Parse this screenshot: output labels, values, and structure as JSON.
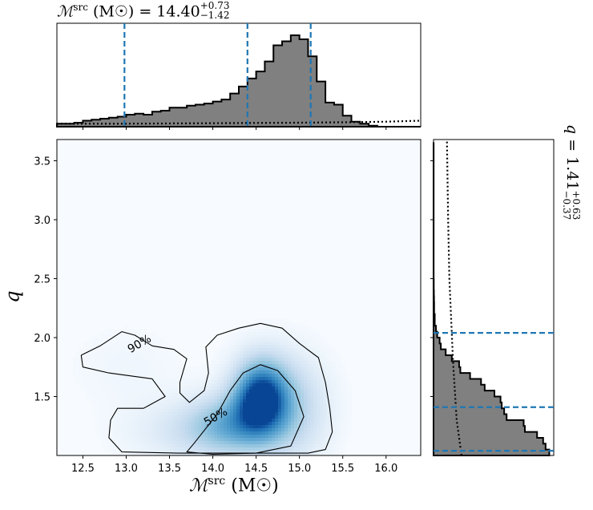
{
  "chart_data": {
    "type": "corner",
    "panels": [
      {
        "id": "marginal-x",
        "type": "histogram",
        "title": "ℳsrc (M☉) = 14.40+0.73−1.42",
        "title_parts": {
          "symbol": "ℳ",
          "sup": "src",
          "unit": "(M☉) = 14.40",
          "plus": "+0.73",
          "minus": "−1.42"
        },
        "x_range": [
          12.2,
          16.4
        ],
        "bin_width": 0.1,
        "bin_edges_start": 12.2,
        "counts": [
          0.03,
          0.03,
          0.04,
          0.06,
          0.07,
          0.08,
          0.09,
          0.1,
          0.12,
          0.13,
          0.12,
          0.15,
          0.16,
          0.19,
          0.19,
          0.21,
          0.22,
          0.23,
          0.25,
          0.27,
          0.33,
          0.4,
          0.48,
          0.55,
          0.65,
          0.81,
          0.85,
          0.91,
          0.87,
          0.7,
          0.45,
          0.24,
          0.22,
          0.11,
          0.05,
          0.03,
          0.01,
          0.0,
          0.0,
          0.0,
          0.0,
          0.0
        ],
        "prior_dotted": {
          "x": [
            12.2,
            13.0,
            14.0,
            15.0,
            15.6,
            16.0,
            16.4
          ],
          "y": [
            0.03,
            0.03,
            0.035,
            0.04,
            0.045,
            0.05,
            0.06
          ]
        },
        "quantiles": [
          12.98,
          14.4,
          15.13
        ]
      },
      {
        "id": "joint",
        "type": "heatmap",
        "xlabel": "ℳsrc (M☉)",
        "xlabel_parts": {
          "symbol": "ℳ",
          "sup": "src",
          "unit": "(M☉)"
        },
        "ylabel": "q",
        "xlim": [
          12.2,
          16.4
        ],
        "ylim": [
          1.0,
          3.68
        ],
        "x_ticks": [
          "12.5",
          "13.0",
          "13.5",
          "14.0",
          "14.5",
          "15.0",
          "15.5",
          "16.0"
        ],
        "y_ticks": [
          "1.5",
          "2.0",
          "2.5",
          "3.0",
          "3.5"
        ],
        "density_peaks": [
          {
            "x": 14.55,
            "y": 1.5,
            "sx": 0.22,
            "sy": 0.22,
            "w": 1.0
          },
          {
            "x": 14.2,
            "y": 1.25,
            "sx": 0.35,
            "sy": 0.18,
            "w": 0.55
          },
          {
            "x": 14.9,
            "y": 1.4,
            "sx": 0.3,
            "sy": 0.3,
            "w": 0.35
          },
          {
            "x": 13.6,
            "y": 1.2,
            "sx": 0.45,
            "sy": 0.18,
            "w": 0.15
          },
          {
            "x": 13.0,
            "y": 1.75,
            "sx": 0.45,
            "sy": 0.25,
            "w": 0.05
          }
        ],
        "contours": [
          {
            "label": "90%",
            "label_at": [
              13.15,
              1.95
            ],
            "paths": [
              [
                [
                  12.48,
                  1.85
                ],
                [
                  12.7,
                  1.93
                ],
                [
                  12.95,
                  2.05
                ],
                [
                  13.1,
                  2.02
                ],
                [
                  13.3,
                  1.93
                ],
                [
                  13.55,
                  1.9
                ],
                [
                  13.7,
                  1.82
                ],
                [
                  13.62,
                  1.62
                ],
                [
                  13.62,
                  1.53
                ],
                [
                  13.73,
                  1.45
                ],
                [
                  13.9,
                  1.55
                ],
                [
                  13.95,
                  1.7
                ],
                [
                  13.92,
                  1.92
                ],
                [
                  14.05,
                  2.02
                ],
                [
                  14.3,
                  2.08
                ],
                [
                  14.55,
                  2.12
                ],
                [
                  14.8,
                  2.08
                ],
                [
                  15.0,
                  1.95
                ],
                [
                  15.22,
                  1.83
                ],
                [
                  15.3,
                  1.62
                ],
                [
                  15.35,
                  1.4
                ],
                [
                  15.38,
                  1.2
                ],
                [
                  15.3,
                  1.05
                ],
                [
                  15.1,
                  1.02
                ],
                [
                  14.4,
                  1.02
                ],
                [
                  13.6,
                  1.02
                ],
                [
                  12.95,
                  1.03
                ],
                [
                  12.8,
                  1.15
                ],
                [
                  12.82,
                  1.3
                ],
                [
                  12.9,
                  1.4
                ],
                [
                  13.2,
                  1.4
                ],
                [
                  13.45,
                  1.5
                ],
                [
                  13.3,
                  1.65
                ],
                [
                  12.8,
                  1.7
                ],
                [
                  12.5,
                  1.75
                ],
                [
                  12.48,
                  1.85
                ]
              ]
            ]
          },
          {
            "label": "50%",
            "label_at": [
              14.03,
              1.33
            ],
            "paths": [
              [
                [
                  13.78,
                  1.1
                ],
                [
                  14.05,
                  1.35
                ],
                [
                  14.2,
                  1.55
                ],
                [
                  14.35,
                  1.7
                ],
                [
                  14.55,
                  1.77
                ],
                [
                  14.75,
                  1.72
                ],
                [
                  14.95,
                  1.55
                ],
                [
                  15.05,
                  1.33
                ],
                [
                  14.9,
                  1.08
                ],
                [
                  14.5,
                  1.02
                ],
                [
                  14.0,
                  1.01
                ],
                [
                  13.7,
                  1.03
                ],
                [
                  13.78,
                  1.1
                ]
              ]
            ]
          }
        ]
      },
      {
        "id": "marginal-y",
        "type": "histogram",
        "orientation": "horizontal",
        "title": "q = 1.41+0.63−0.37",
        "title_parts": {
          "symbol": "q",
          "unit": " = 1.41",
          "plus": "+0.63",
          "minus": "−0.37"
        },
        "y_range": [
          1.0,
          3.68
        ],
        "bin_width": 0.05,
        "bin_edges_start": 1.0,
        "counts": [
          0.95,
          0.92,
          0.9,
          0.85,
          0.75,
          0.74,
          0.6,
          0.58,
          0.56,
          0.55,
          0.5,
          0.42,
          0.39,
          0.3,
          0.22,
          0.21,
          0.15,
          0.1,
          0.06,
          0.05,
          0.03,
          0.02,
          0.01,
          0.01,
          0.005,
          0.005,
          0.004,
          0.003,
          0.002,
          0.002,
          0.001,
          0.001,
          0.001,
          0.001,
          0.001,
          0.001,
          0.001,
          0.001,
          0.001,
          0.001,
          0.001,
          0.001,
          0.001,
          0.001,
          0.001,
          0.001,
          0.001,
          0.001,
          0.001,
          0.001,
          0.001,
          0.001,
          0.001
        ],
        "prior_dotted": {
          "y": [
            1.0,
            1.3,
            1.8,
            2.5,
            3.0,
            3.68
          ],
          "x": [
            0.23,
            0.19,
            0.16,
            0.13,
            0.12,
            0.11
          ]
        },
        "quantiles": [
          1.04,
          1.41,
          2.04
        ]
      }
    ]
  },
  "colors": {
    "quantile_line": "#1f77b4",
    "hist_fill": "#808080",
    "hist_edge": "#000000"
  }
}
